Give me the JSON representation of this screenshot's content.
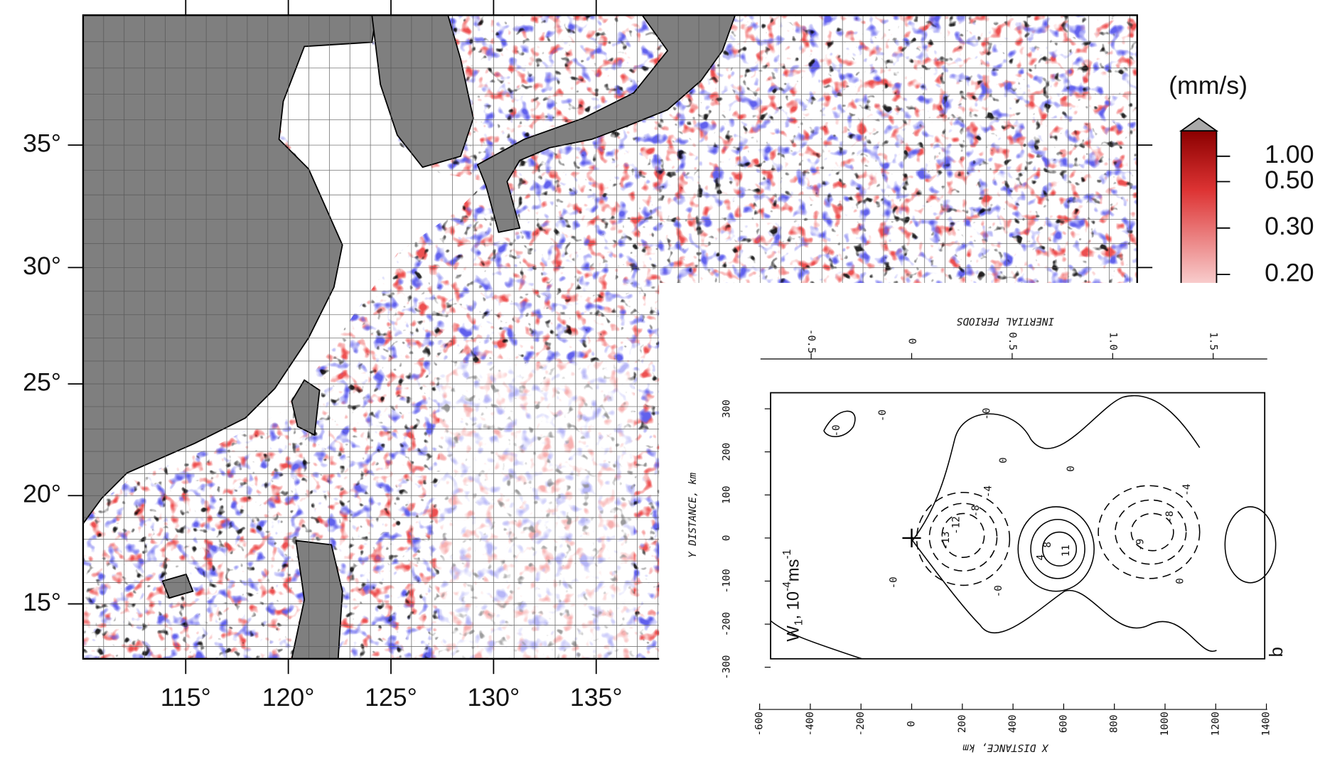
{
  "map": {
    "lon_ticks": [
      {
        "value": 115,
        "label": "115°"
      },
      {
        "value": 120,
        "label": "120°"
      },
      {
        "value": 125,
        "label": "125°"
      },
      {
        "value": 130,
        "label": "130°"
      },
      {
        "value": 135,
        "label": "135°"
      }
    ],
    "lat_ticks": [
      {
        "value": 35,
        "label": "35°"
      },
      {
        "value": 30,
        "label": "30°"
      },
      {
        "value": 25,
        "label": "25°"
      },
      {
        "value": 20,
        "label": "20°"
      },
      {
        "value": 15,
        "label": "15°"
      }
    ],
    "colorbar": {
      "unit": "(mm/s)",
      "ticks": [
        {
          "value": 1,
          "label": "1.00"
        },
        {
          "value": 0.5,
          "label": "0.50"
        },
        {
          "value": 0.3,
          "label": "0.30"
        },
        {
          "value": 0.2,
          "label": "0.20"
        }
      ]
    }
  },
  "inset": {
    "top_axis": {
      "title": "INERTIAL PERIODS",
      "ticks": [
        -0.5,
        0,
        0.5,
        {
          "value": 1,
          "label": "1.0"
        },
        1.5
      ]
    },
    "y_axis": {
      "title": "Y DISTANCE, km",
      "ticks": [
        300,
        200,
        100,
        0,
        -100,
        -200,
        -300
      ]
    },
    "x_axis": {
      "title": "X DISTANCE, km",
      "ticks": [
        -600,
        -400,
        -200,
        0,
        200,
        400,
        600,
        800,
        1000,
        1200,
        1400
      ]
    },
    "annotation": {
      "symbol": "W",
      "subscript": "1",
      "unit_prefix": ", 10",
      "exponent": "-4",
      "unit": "ms",
      "unit_exponent": "-1"
    },
    "panel_label": "b",
    "contour_labels": [
      "-0",
      "-0",
      "0",
      "0",
      "-0",
      "-0",
      "-4",
      "-8",
      "-12",
      "-13",
      "4",
      "8",
      "11",
      "-9",
      "-8",
      "-4",
      "0",
      "-0"
    ]
  }
}
